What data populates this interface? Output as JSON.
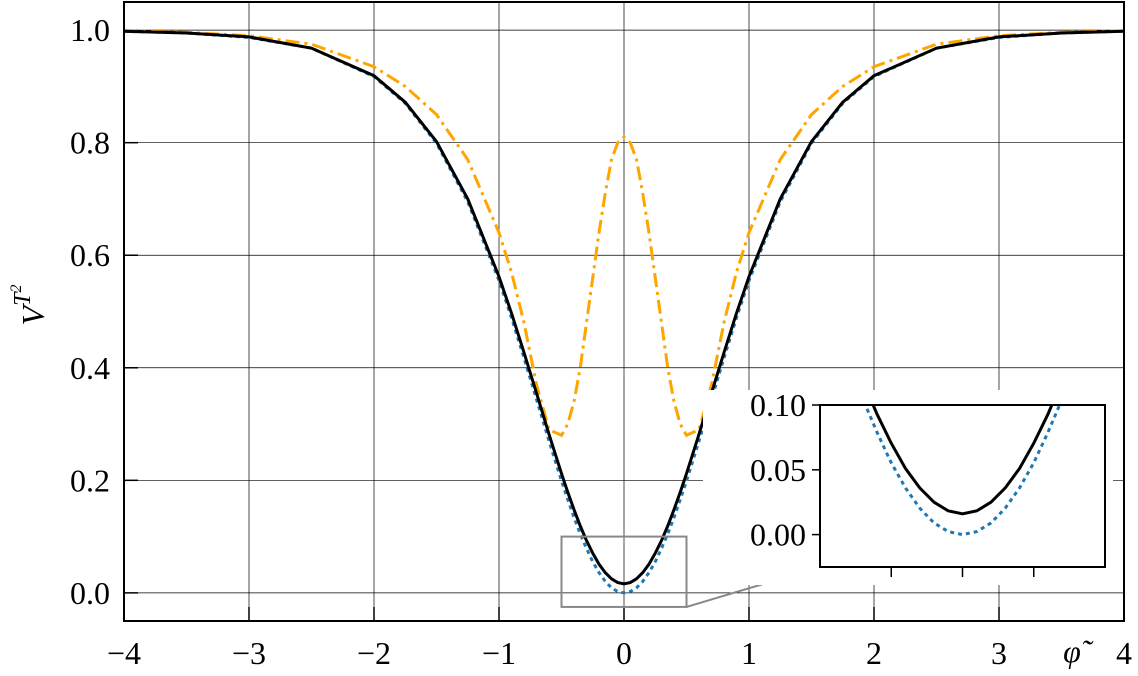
{
  "chart_data": {
    "type": "line",
    "ylabel": [
      "V",
      "T",
      "2"
    ],
    "xlabel": "φ̃",
    "x": [
      -4,
      -3.5,
      -3,
      -2.5,
      -2,
      -1.75,
      -1.5,
      -1.25,
      -1,
      -0.9,
      -0.8,
      -0.7,
      -0.6,
      -0.5,
      -0.45,
      -0.4,
      -0.35,
      -0.3,
      -0.25,
      -0.2,
      -0.15,
      -0.1,
      -0.05,
      0,
      0.05,
      0.1,
      0.15,
      0.2,
      0.25,
      0.3,
      0.35,
      0.4,
      0.45,
      0.5,
      0.6,
      0.7,
      0.8,
      0.9,
      1,
      1.25,
      1.5,
      1.75,
      2,
      2.5,
      3,
      3.5,
      4
    ],
    "series": [
      {
        "color": "#1f77b4",
        "linestyle": "dotted",
        "values": [
          0.998,
          0.995,
          0.987,
          0.968,
          0.9175,
          0.87,
          0.799,
          0.695,
          0.555,
          0.489,
          0.4175,
          0.344,
          0.27,
          0.199,
          0.166,
          0.134,
          0.1048,
          0.079,
          0.0554,
          0.036,
          0.0204,
          0.009,
          0.0023,
          0,
          0.0023,
          0.009,
          0.0204,
          0.036,
          0.0554,
          0.079,
          0.1048,
          0.134,
          0.166,
          0.199,
          0.27,
          0.344,
          0.4175,
          0.489,
          0.555,
          0.695,
          0.799,
          0.87,
          0.9175,
          0.968,
          0.987,
          0.995,
          0.998
        ]
      },
      {
        "color": "#ffa500",
        "linestyle": "dashdot",
        "values": [
          0.999,
          0.996,
          0.99,
          0.975,
          0.935,
          0.9,
          0.85,
          0.77,
          0.64,
          0.57,
          0.48,
          0.37,
          0.29,
          0.28,
          0.3,
          0.34,
          0.4,
          0.48,
          0.56,
          0.64,
          0.71,
          0.77,
          0.8,
          0.81,
          0.8,
          0.77,
          0.71,
          0.64,
          0.56,
          0.48,
          0.4,
          0.34,
          0.3,
          0.28,
          0.29,
          0.37,
          0.48,
          0.57,
          0.64,
          0.77,
          0.85,
          0.9,
          0.935,
          0.975,
          0.99,
          0.996,
          0.999
        ]
      },
      {
        "color": "#000000",
        "linestyle": "solid",
        "values": [
          0.998,
          0.995,
          0.988,
          0.968,
          0.919,
          0.872,
          0.802,
          0.7,
          0.562,
          0.497,
          0.427,
          0.355,
          0.282,
          0.212,
          0.179,
          0.148,
          0.119,
          0.093,
          0.0705,
          0.051,
          0.036,
          0.025,
          0.0183,
          0.016,
          0.0183,
          0.025,
          0.036,
          0.051,
          0.0705,
          0.093,
          0.119,
          0.148,
          0.179,
          0.212,
          0.282,
          0.355,
          0.427,
          0.497,
          0.562,
          0.7,
          0.802,
          0.872,
          0.919,
          0.968,
          0.988,
          0.995,
          0.998
        ]
      }
    ],
    "xlim": [
      -4,
      4
    ],
    "ylim": [
      -0.05,
      1.05
    ],
    "xticks": [
      {
        "value": -4,
        "label": "−4"
      },
      {
        "value": -3,
        "label": "−3"
      },
      {
        "value": -2,
        "label": "−2"
      },
      {
        "value": -1,
        "label": "−1"
      },
      0,
      1,
      2,
      3,
      4
    ],
    "yticks": [
      {
        "value": 0,
        "label": "0.0"
      },
      {
        "value": 0.2,
        "label": "0.2"
      },
      {
        "value": 0.4,
        "label": "0.4"
      },
      {
        "value": 0.6,
        "label": "0.6"
      },
      {
        "value": 0.8,
        "label": "0.8"
      },
      {
        "value": 1,
        "label": "1.0"
      }
    ],
    "grid": true,
    "inset": {
      "xlim": [
        -0.5,
        0.5
      ],
      "ylim": [
        -0.025,
        0.1
      ],
      "xticks": [
        -0.25,
        0,
        0.25
      ],
      "yticks": [
        {
          "value": 0,
          "label": "0.00"
        },
        {
          "value": 0.05,
          "label": "0.05"
        },
        {
          "value": 0.1,
          "label": "0.10"
        }
      ]
    }
  }
}
